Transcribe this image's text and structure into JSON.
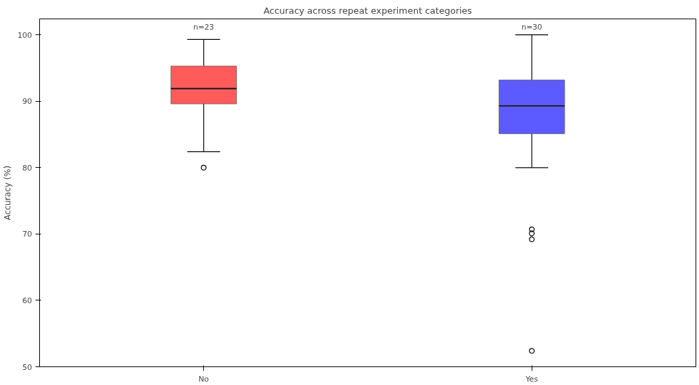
{
  "chart_data": {
    "type": "box",
    "title": "Accuracy across repeat experiment categories",
    "ylabel": "Accuracy (%)",
    "categories": [
      "No",
      "Yes"
    ],
    "colors": [
      "#ff5b5b",
      "#5b5bff"
    ],
    "boxes": [
      {
        "low": 82.4,
        "q1": 89.6,
        "median": 91.9,
        "q3": 95.3,
        "high": 99.3,
        "outliers": [
          80.0
        ]
      },
      {
        "low": 80.0,
        "q1": 85.1,
        "median": 89.3,
        "q3": 93.2,
        "high": 100.0,
        "outliers": [
          70.7,
          70.1,
          69.2,
          52.4
        ]
      }
    ],
    "ylim": [
      50,
      102.4
    ],
    "yticks": [
      50,
      60,
      70,
      80,
      90,
      100
    ],
    "grid": false,
    "annotations": [
      "n=23",
      "n=30"
    ]
  }
}
